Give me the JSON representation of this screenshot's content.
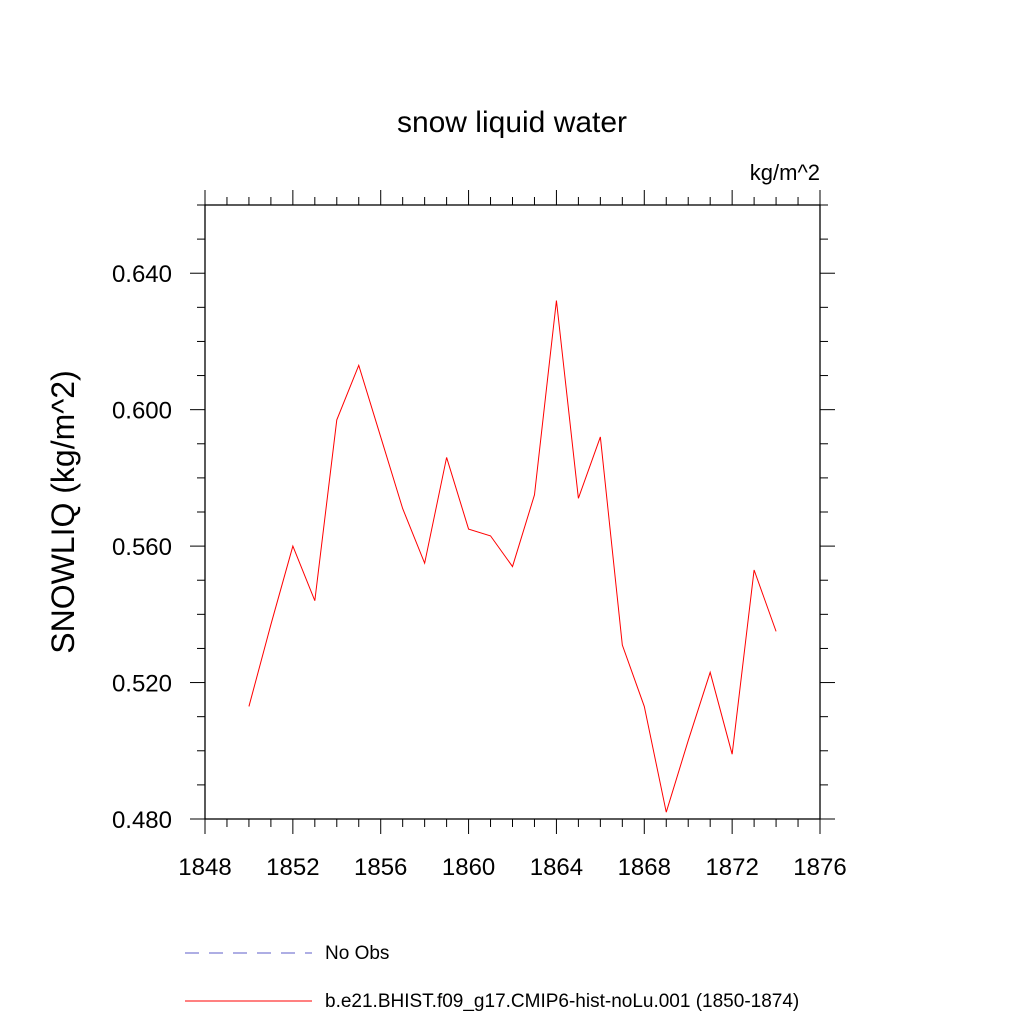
{
  "chart_data": {
    "type": "line",
    "title": "snow liquid water",
    "units_label": "kg/m^2",
    "xlabel": "",
    "ylabel": "SNOWLIQ  (kg/m^2)",
    "xlim": [
      1848,
      1876
    ],
    "ylim": [
      0.48,
      0.66
    ],
    "x_ticks": [
      1848,
      1852,
      1856,
      1860,
      1864,
      1868,
      1872,
      1876
    ],
    "x_tick_labels": [
      "1848",
      "1852",
      "1856",
      "1860",
      "1864",
      "1868",
      "1872",
      "1876"
    ],
    "y_ticks": [
      0.48,
      0.52,
      0.56,
      0.6,
      0.64
    ],
    "y_tick_labels": [
      "0.480",
      "0.520",
      "0.560",
      "0.600",
      "0.640"
    ],
    "grid": false,
    "legend_position": "bottom",
    "series": [
      {
        "name": "b.e21.BHIST.f09_g17.CMIP6-hist-noLu.001 (1850-1874)",
        "color": "#ff0000",
        "style": "solid",
        "x": [
          1850,
          1851,
          1852,
          1853,
          1854,
          1855,
          1856,
          1857,
          1858,
          1859,
          1860,
          1861,
          1862,
          1863,
          1864,
          1865,
          1866,
          1867,
          1868,
          1869,
          1870,
          1871,
          1872,
          1873,
          1874
        ],
        "y": [
          0.513,
          0.537,
          0.56,
          0.544,
          0.597,
          0.613,
          0.592,
          0.571,
          0.555,
          0.586,
          0.565,
          0.563,
          0.554,
          0.575,
          0.632,
          0.574,
          0.592,
          0.531,
          0.513,
          0.482,
          0.503,
          0.523,
          0.499,
          0.553,
          0.535
        ]
      }
    ],
    "legend": [
      {
        "label": "No Obs",
        "color": "#5c5cc8",
        "style": "dashed"
      },
      {
        "label": "b.e21.BHIST.f09_g17.CMIP6-hist-noLu.001 (1850-1874)",
        "color": "#ff0000",
        "style": "solid"
      }
    ]
  }
}
